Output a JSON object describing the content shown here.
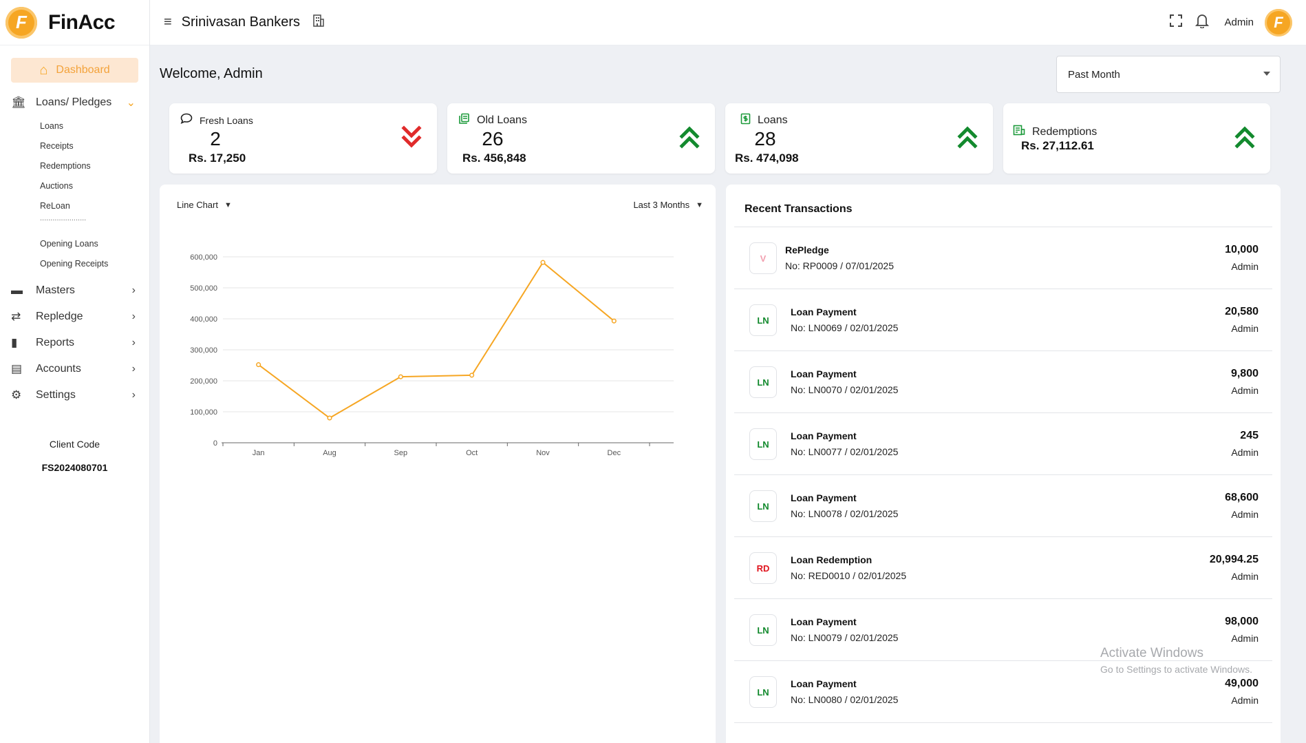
{
  "app": {
    "name": "FinAcc",
    "logo_letter": "F"
  },
  "header": {
    "firm_name": "Srinivasan Bankers",
    "user": "Admin",
    "avatar_letter": "F"
  },
  "sidebar": {
    "dashboard": "Dashboard",
    "loans_group": "Loans/ Pledges",
    "loans_sub": [
      "Loans",
      "Receipts",
      "Redemptions",
      "Auctions",
      "ReLoan"
    ],
    "separator": "......................",
    "opening_sub": [
      "Opening Loans",
      "Opening Receipts"
    ],
    "groups": [
      "Masters",
      "Repledge",
      "Reports",
      "Accounts",
      "Settings"
    ],
    "client_code_label": "Client Code",
    "client_code": "FS2024080701"
  },
  "main": {
    "welcome": "Welcome, Admin",
    "period": "Past Month"
  },
  "cards": [
    {
      "title": "Fresh Loans",
      "count": "2",
      "amount": "Rs. 17,250",
      "trend": "down",
      "trend_color": "#e02b2b"
    },
    {
      "title": "Old Loans",
      "count": "26",
      "amount": "Rs. 456,848",
      "trend": "up",
      "trend_color": "#138a2e"
    },
    {
      "title": "Loans",
      "count": "28",
      "amount": "Rs. 474,098",
      "trend": "up",
      "trend_color": "#138a2e"
    },
    {
      "title": "Redemptions",
      "count": "",
      "amount": "Rs. 27,112.61",
      "trend": "up",
      "trend_color": "#138a2e"
    }
  ],
  "chart_controls": {
    "type_label": "Line Chart",
    "range_label": "Last 3 Months"
  },
  "chart_data": {
    "type": "line",
    "categories": [
      "Jan",
      "Aug",
      "Sep",
      "Oct",
      "Nov",
      "Dec"
    ],
    "series": [
      {
        "values": [
          252000,
          80000,
          213000,
          218000,
          582000,
          393000
        ],
        "color": "#f6a623"
      }
    ],
    "yticks": [
      "0",
      "100,000",
      "200,000",
      "300,000",
      "400,000",
      "500,000",
      "600,000"
    ],
    "ylim": [
      0,
      600000
    ],
    "grid": true,
    "title": "",
    "xlabel": "",
    "ylabel": ""
  },
  "transactions": {
    "title": "Recent Transactions",
    "items": [
      {
        "badge": "V",
        "badge_color": "#f2a0b0",
        "type": "RePledge",
        "no": "No: RP0009 / 07/01/2025",
        "amount": "10,000",
        "user": "Admin"
      },
      {
        "badge": "LN",
        "badge_color": "#138a2e",
        "type": "Loan Payment",
        "no": "No: LN0069 / 02/01/2025",
        "amount": "20,580",
        "user": "Admin"
      },
      {
        "badge": "LN",
        "badge_color": "#138a2e",
        "type": "Loan Payment",
        "no": "No: LN0070 / 02/01/2025",
        "amount": "9,800",
        "user": "Admin"
      },
      {
        "badge": "LN",
        "badge_color": "#138a2e",
        "type": "Loan Payment",
        "no": "No: LN0077 / 02/01/2025",
        "amount": "245",
        "user": "Admin"
      },
      {
        "badge": "LN",
        "badge_color": "#138a2e",
        "type": "Loan Payment",
        "no": "No: LN0078 / 02/01/2025",
        "amount": "68,600",
        "user": "Admin"
      },
      {
        "badge": "RD",
        "badge_color": "#e0141e",
        "type": "Loan Redemption",
        "no": "No: RED0010 / 02/01/2025",
        "amount": "20,994.25",
        "user": "Admin"
      },
      {
        "badge": "LN",
        "badge_color": "#138a2e",
        "type": "Loan Payment",
        "no": "No: LN0079 / 02/01/2025",
        "amount": "98,000",
        "user": "Admin"
      },
      {
        "badge": "LN",
        "badge_color": "#138a2e",
        "type": "Loan Payment",
        "no": "No: LN0080 / 02/01/2025",
        "amount": "49,000",
        "user": "Admin"
      }
    ]
  },
  "watermark": {
    "line1": "Activate Windows",
    "line2": "Go to Settings to activate Windows."
  }
}
